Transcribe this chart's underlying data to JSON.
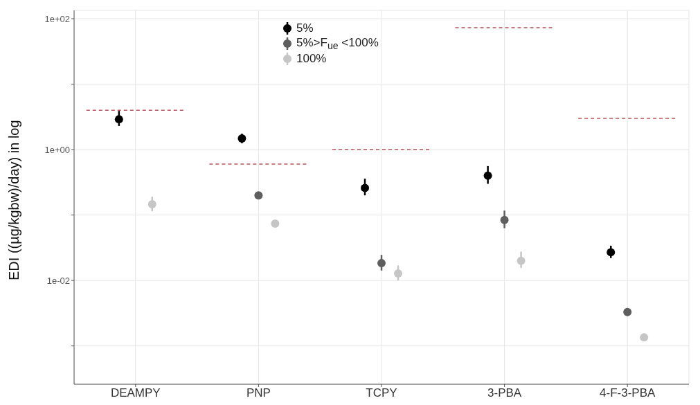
{
  "chart_data": {
    "type": "scatter",
    "ylabel": "EDI ((µg/kgbw)/day) in log",
    "categories": [
      "DEAMPY",
      "PNP",
      "TCPY",
      "3-PBA",
      "4-F-3-PBA"
    ],
    "log": "y",
    "ylim": [
      0.00026,
      134
    ],
    "yticks": [
      {
        "value": 0.001,
        "label": null
      },
      {
        "value": 0.01,
        "label": "1e-02"
      },
      {
        "value": 0.1,
        "label": null
      },
      {
        "value": 1,
        "label": "1e+00"
      },
      {
        "value": 10,
        "label": null
      },
      {
        "value": 100,
        "label": "1e+02"
      }
    ],
    "grid": true,
    "legend": "top",
    "marker": "circle",
    "series": [
      {
        "name": "5%",
        "color": "#000000",
        "values": [
          2.9,
          1.48,
          0.26,
          0.4,
          0.027
        ],
        "errors": [
          [
            2.3,
            3.9
          ],
          [
            1.25,
            1.75
          ],
          [
            0.2,
            0.36
          ],
          [
            0.3,
            0.56
          ],
          [
            0.022,
            0.034
          ]
        ]
      },
      {
        "name": "5%>F$_{ue}$ <100%",
        "color": "#5e5e5e",
        "values": [
          null,
          0.2,
          0.0184,
          0.084,
          0.0033
        ],
        "errors": [
          null,
          null,
          [
            0.0142,
            0.0246
          ],
          [
            0.063,
            0.117
          ],
          null
        ]
      },
      {
        "name": "100%",
        "color": "#c6c6c6",
        "values": [
          0.146,
          0.074,
          0.0128,
          0.02,
          0.00135
        ],
        "errors": [
          [
            0.114,
            0.19
          ],
          null,
          [
            0.01,
            0.017
          ],
          [
            0.0156,
            0.0276
          ],
          null
        ]
      }
    ],
    "ref_lines": [
      {
        "axis": "y",
        "value": 4.0,
        "color": "#b5525c",
        "line_style": "dashed"
      },
      {
        "axis": "y",
        "value": 0.6,
        "color": "#b5525c",
        "line_style": "dashed"
      },
      {
        "axis": "y",
        "value": 1.0,
        "color": "#b5525c",
        "line_style": "dashed"
      },
      {
        "axis": "y",
        "value": 73,
        "color": "#b5525c",
        "line_style": "dashed"
      },
      {
        "axis": "y",
        "value": 3.0,
        "color": "#b5525c",
        "line_style": "dashed"
      }
    ]
  }
}
